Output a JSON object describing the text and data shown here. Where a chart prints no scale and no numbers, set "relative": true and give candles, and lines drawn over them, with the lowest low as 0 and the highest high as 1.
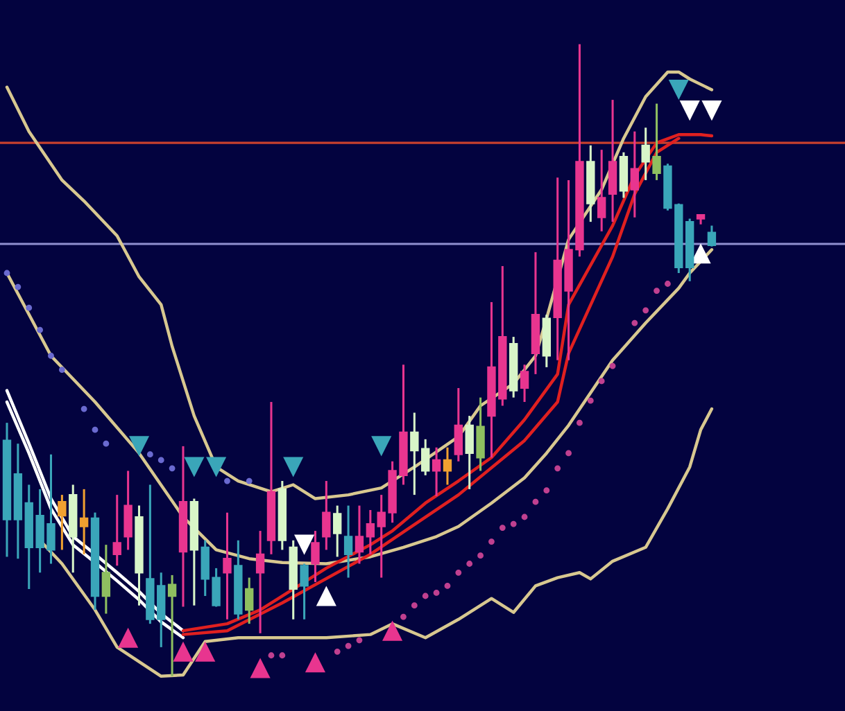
{
  "chart_data": {
    "type": "candlestick",
    "relative": true,
    "tick_labels": false,
    "categories": [
      null,
      null,
      null,
      null,
      null,
      null,
      null,
      null,
      null,
      null,
      null,
      null,
      null,
      null,
      null,
      null,
      null,
      null,
      null,
      null,
      null,
      null,
      null,
      null,
      null,
      null,
      null,
      null,
      null,
      null,
      null,
      null,
      null,
      null,
      null,
      null,
      null,
      null,
      null,
      null,
      null,
      null,
      null,
      null,
      null,
      null,
      null,
      null,
      null,
      null,
      null,
      null,
      null,
      null,
      null,
      null,
      null,
      null,
      null,
      null,
      null,
      null,
      null,
      null,
      null,
      null,
      null,
      null,
      null,
      null,
      null,
      null,
      null,
      null,
      null,
      null,
      null
    ],
    "ohlc": [
      [
        0.373,
        0.401,
        0.189,
        0.248
      ],
      [
        0.32,
        0.368,
        0.186,
        0.248
      ],
      [
        0.274,
        0.303,
        0.138,
        0.204
      ],
      [
        0.254,
        0.296,
        0.164,
        0.204
      ],
      [
        0.241,
        0.351,
        0.178,
        0.2
      ],
      [
        0.276,
        0.287,
        0.2,
        0.254
      ],
      [
        0.221,
        0.303,
        0.164,
        0.287
      ],
      [
        0.25,
        0.296,
        0.193,
        0.237
      ],
      [
        0.25,
        0.259,
        0.105,
        0.127
      ],
      [
        0.164,
        0.208,
        0.099,
        0.127
      ],
      [
        0.193,
        0.287,
        0.175,
        0.211
      ],
      [
        0.221,
        0.325,
        0.2,
        0.27
      ],
      [
        0.164,
        0.27,
        0.112,
        0.252
      ],
      [
        0.154,
        0.303,
        0.083,
        0.09
      ],
      [
        0.143,
        0.164,
        0.046,
        0.09
      ],
      [
        0.145,
        0.16,
        0,
        0.127
      ],
      [
        0.197,
        0.364,
        0.11,
        0.276
      ],
      [
        0.2,
        0.281,
        0.112,
        0.276
      ],
      [
        0.204,
        0.215,
        0.127,
        0.154
      ],
      [
        0.156,
        0.171,
        0.11,
        0.112
      ],
      [
        0.164,
        0.259,
        0.09,
        0.186
      ],
      [
        0.175,
        0.215,
        0.09,
        0.099
      ],
      [
        0.138,
        0.156,
        0.083,
        0.105
      ],
      [
        0.164,
        0.23,
        0.068,
        0.193
      ],
      [
        0.215,
        0.434,
        0.193,
        0.292
      ],
      [
        0.215,
        0.309,
        0.2,
        0.296
      ],
      [
        0.138,
        0.215,
        0.09,
        0.204
      ],
      [
        0.175,
        0.178,
        0.09,
        0.143
      ],
      [
        0.178,
        0.23,
        0.149,
        0.211
      ],
      [
        0.221,
        0.309,
        0.2,
        0.259
      ],
      [
        0.226,
        0.27,
        0.189,
        0.257
      ],
      [
        0.221,
        0.27,
        0.156,
        0.193
      ],
      [
        0.197,
        0.27,
        0.178,
        0.221
      ],
      [
        0.221,
        0.263,
        0.193,
        0.241
      ],
      [
        0.237,
        0.287,
        0.156,
        0.259
      ],
      [
        0.259,
        0.34,
        0.243,
        0.325
      ],
      [
        0.318,
        0.493,
        0.303,
        0.386
      ],
      [
        0.357,
        0.417,
        0.287,
        0.386
      ],
      [
        0.325,
        0.375,
        0.318,
        0.36
      ],
      [
        0.325,
        0.362,
        0.285,
        0.342
      ],
      [
        0.342,
        0.362,
        0.303,
        0.325
      ],
      [
        0.351,
        0.456,
        0.34,
        0.397
      ],
      [
        0.353,
        0.412,
        0.296,
        0.397
      ],
      [
        0.395,
        0.441,
        0.325,
        0.346
      ],
      [
        0.412,
        0.592,
        0.346,
        0.489
      ],
      [
        0.439,
        0.649,
        0.428,
        0.537
      ],
      [
        0.452,
        0.537,
        0.441,
        0.526
      ],
      [
        0.456,
        0.493,
        0.434,
        0.482
      ],
      [
        0.511,
        0.671,
        0.478,
        0.572
      ],
      [
        0.507,
        0.572,
        0.489,
        0.566
      ],
      [
        0.568,
        0.789,
        0.5,
        0.658
      ],
      [
        0.61,
        0.785,
        0.5,
        0.675
      ],
      [
        0.675,
        1,
        0.664,
        0.814
      ],
      [
        0.748,
        0.84,
        0.719,
        0.814
      ],
      [
        0.726,
        0.833,
        0.704,
        0.757
      ],
      [
        0.763,
        0.912,
        0.719,
        0.814
      ],
      [
        0.768,
        0.829,
        0.757,
        0.822
      ],
      [
        0.77,
        0.862,
        0.726,
        0.803
      ],
      [
        0.814,
        0.868,
        0.785,
        0.84
      ],
      [
        0.822,
        0.906,
        0.785,
        0.796
      ],
      [
        0.807,
        0.811,
        0.737,
        0.741
      ],
      [
        0.746,
        0.748,
        0.638,
        0.647
      ],
      [
        0.719,
        0.724,
        0.625,
        0.647
      ],
      [
        0.724,
        0.73,
        0.715,
        0.73
      ],
      [
        0.702,
        0.713,
        0.68,
        0.682
      ],
      null,
      null,
      null,
      null,
      null,
      null,
      null,
      null,
      null,
      null,
      null,
      null
    ],
    "colors": [
      "#3aa6b9",
      "#3aa6b9",
      "#3aa6b9",
      "#3aa6b9",
      "#3aa6b9",
      "#f0a030",
      "#d8f5c8",
      "#f0a030",
      "#3aa6b9",
      "#8fbf60",
      "#e8358f",
      "#e8358f",
      "#d8f5c8",
      "#3aa6b9",
      "#3aa6b9",
      "#8fbf60",
      "#e8358f",
      "#d8f5c8",
      "#3aa6b9",
      "#3aa6b9",
      "#e8358f",
      "#3aa6b9",
      "#8fbf60",
      "#e8358f",
      "#e8358f",
      "#d8f5c8",
      "#d8f5c8",
      "#3aa6b9",
      "#e8358f",
      "#e8358f",
      "#d8f5c8",
      "#3aa6b9",
      "#e8358f",
      "#e8358f",
      "#e8358f",
      "#e8358f",
      "#e8358f",
      "#d8f5c8",
      "#d8f5c8",
      "#e8358f",
      "#f0a030",
      "#e8358f",
      "#d8f5c8",
      "#8fbf60",
      "#e8358f",
      "#e8358f",
      "#d8f5c8",
      "#e8358f",
      "#e8358f",
      "#d8f5c8",
      "#e8358f",
      "#e8358f",
      "#e8358f",
      "#d8f5c8",
      "#e8358f",
      "#e8358f",
      "#d8f5c8",
      "#e8358f",
      "#d8f5c8",
      "#8fbf60",
      "#3aa6b9",
      "#3aa6b9",
      "#3aa6b9",
      "#e8358f",
      "#3aa6b9",
      null,
      null,
      null,
      null,
      null,
      null,
      null,
      null,
      null,
      null,
      null,
      null
    ],
    "ref_lines": [
      {
        "axis": "y",
        "value": 0.844,
        "color": "#c8402e"
      },
      {
        "axis": "y",
        "value": 0.684,
        "color": "#9090d0"
      }
    ],
    "series": [
      {
        "type": "line",
        "color": "#d8c890",
        "values": [
          0.932,
          null,
          0.862,
          null,
          null,
          0.785,
          null,
          0.752,
          null,
          null,
          0.697,
          null,
          0.632,
          null,
          0.588,
          0.522,
          null,
          0.412,
          null,
          0.331,
          null,
          0.309,
          null,
          null,
          0.292,
          null,
          0.303,
          null,
          0.281,
          null,
          null,
          0.287,
          null,
          null,
          0.298,
          null,
          null,
          0.331,
          null,
          null,
          null,
          0.379,
          null,
          0.428,
          null,
          null,
          0.463,
          null,
          0.507,
          0.566,
          null,
          0.691,
          null,
          null,
          0.77,
          null,
          0.851,
          null,
          0.917,
          null,
          0.956,
          0.956,
          0.945,
          null,
          0.928,
          null,
          null,
          null,
          null,
          null,
          null,
          null,
          null,
          null,
          null,
          null,
          null
        ]
      },
      {
        "type": "line",
        "color": "#d8c890",
        "values": [
          0.638,
          null,
          null,
          null,
          0.507,
          null,
          null,
          null,
          0.434,
          null,
          null,
          null,
          0.353,
          null,
          null,
          null,
          0.252,
          null,
          null,
          0.2,
          null,
          null,
          0.186,
          null,
          null,
          0.18,
          null,
          null,
          null,
          0.178,
          null,
          null,
          null,
          0.189,
          null,
          null,
          0.204,
          null,
          null,
          0.221,
          null,
          0.237,
          null,
          null,
          0.274,
          null,
          null,
          0.314,
          null,
          0.353,
          null,
          0.397,
          null,
          null,
          null,
          0.5,
          null,
          null,
          0.559,
          null,
          null,
          0.614,
          0.638,
          null,
          0.675,
          null,
          null,
          null,
          null,
          null,
          null,
          null,
          null,
          null,
          null,
          null,
          null
        ]
      },
      {
        "type": "line",
        "color": "#d8c890",
        "values": [
          null,
          null,
          null,
          0.215,
          null,
          0.178,
          null,
          null,
          0.105,
          null,
          0.046,
          null,
          null,
          null,
          0,
          null,
          0.002,
          null,
          0.055,
          null,
          null,
          0.061,
          null,
          null,
          null,
          0.061,
          null,
          null,
          null,
          0.061,
          null,
          null,
          null,
          0.066,
          null,
          0.083,
          null,
          null,
          0.061,
          null,
          null,
          0.09,
          null,
          null,
          0.123,
          null,
          0.101,
          null,
          0.143,
          null,
          0.156,
          null,
          0.164,
          0.154,
          null,
          0.182,
          null,
          null,
          0.204,
          null,
          0.265,
          null,
          0.331,
          0.39,
          0.423,
          null,
          null,
          null,
          null,
          null,
          null,
          null,
          null,
          null,
          null,
          null,
          null
        ]
      },
      {
        "type": "line",
        "color": "#ffffff",
        "values": [
          0.452,
          null,
          0.368,
          null,
          0.281,
          null,
          0.221,
          null,
          0.193,
          null,
          0.164,
          null,
          0.134,
          null,
          0.099,
          null,
          0.072,
          null,
          null,
          null,
          null,
          null,
          null,
          null,
          null,
          null,
          null,
          null,
          null,
          null,
          null,
          null,
          null,
          null,
          null,
          null,
          null,
          null,
          null,
          null,
          null,
          null,
          null,
          null,
          null,
          null,
          null,
          null,
          null,
          null,
          null,
          null,
          null,
          null,
          null,
          null,
          null,
          null,
          null,
          null,
          null,
          null,
          null,
          null,
          null,
          null,
          null,
          null,
          null,
          null,
          null,
          null,
          null,
          null,
          null,
          null,
          null
        ]
      },
      {
        "type": "line",
        "color": "#ffffff",
        "values": [
          0.434,
          null,
          0.353,
          null,
          0.265,
          null,
          0.208,
          null,
          0.18,
          null,
          0.151,
          null,
          0.121,
          null,
          0.086,
          null,
          0.061,
          null,
          null,
          null,
          null,
          null,
          null,
          null,
          null,
          null,
          null,
          null,
          null,
          null,
          null,
          null,
          null,
          null,
          null,
          null,
          null,
          null,
          null,
          null,
          null,
          null,
          null,
          null,
          null,
          null,
          null,
          null,
          null,
          null,
          null,
          null,
          null,
          null,
          null,
          null,
          null,
          null,
          null,
          null,
          null,
          null,
          null,
          null,
          null,
          null,
          null,
          null,
          null,
          null,
          null,
          null,
          null,
          null,
          null,
          null,
          null
        ]
      },
      {
        "type": "line",
        "color": "#e02020",
        "values": [
          null,
          null,
          null,
          null,
          null,
          null,
          null,
          null,
          null,
          null,
          null,
          null,
          null,
          null,
          null,
          null,
          0.072,
          null,
          null,
          null,
          0.083,
          null,
          null,
          0.105,
          null,
          0.127,
          null,
          null,
          null,
          0.171,
          null,
          null,
          null,
          0.208,
          null,
          0.23,
          null,
          null,
          0.274,
          null,
          null,
          0.309,
          null,
          null,
          0.346,
          null,
          null,
          0.406,
          null,
          null,
          0.478,
          0.588,
          null,
          null,
          null,
          0.713,
          null,
          0.792,
          null,
          0.844,
          null,
          0.857,
          null,
          0.857,
          0.855,
          null,
          null,
          null,
          null,
          null,
          null,
          null,
          null,
          null,
          null,
          null,
          null
        ]
      },
      {
        "type": "line",
        "color": "#e02020",
        "values": [
          null,
          null,
          null,
          null,
          null,
          null,
          null,
          null,
          null,
          null,
          null,
          null,
          null,
          null,
          null,
          null,
          0.066,
          null,
          null,
          null,
          0.072,
          null,
          null,
          null,
          null,
          0.116,
          null,
          null,
          null,
          null,
          null,
          null,
          null,
          0.193,
          null,
          null,
          null,
          null,
          null,
          null,
          null,
          0.287,
          null,
          null,
          null,
          null,
          null,
          0.373,
          null,
          null,
          0.434,
          0.511,
          null,
          null,
          null,
          0.664,
          null,
          0.763,
          null,
          0.829,
          null,
          0.851,
          null,
          null,
          null,
          null,
          null,
          null,
          null,
          null,
          null,
          null,
          null,
          null,
          null,
          null,
          null
        ]
      },
      {
        "type": "scatter",
        "color": "#6a6ad0",
        "marker": "circle",
        "values": [
          0.638,
          0.616,
          0.583,
          0.548,
          0.507,
          0.485,
          null,
          0.423,
          0.39,
          0.368,
          null,
          null,
          null,
          0.351,
          0.342,
          0.329,
          null,
          null,
          null,
          null,
          0.309,
          null,
          0.309,
          null,
          null,
          null,
          null,
          null,
          null,
          null,
          null,
          null,
          null,
          null,
          null,
          null,
          null,
          null,
          null,
          null,
          null,
          null,
          null,
          null,
          null,
          null,
          null,
          null,
          null,
          null,
          null,
          null,
          null,
          null,
          null,
          null,
          null,
          null,
          null,
          null,
          null,
          null,
          null,
          null,
          null,
          null,
          null,
          null,
          null,
          null,
          null,
          null,
          null,
          null,
          null,
          null,
          null
        ]
      },
      {
        "type": "scatter",
        "color": "#c04090",
        "marker": "circle",
        "values": [
          null,
          null,
          null,
          null,
          null,
          null,
          null,
          null,
          null,
          null,
          null,
          null,
          null,
          null,
          null,
          null,
          null,
          null,
          null,
          null,
          null,
          null,
          null,
          null,
          0.033,
          0.033,
          null,
          null,
          null,
          null,
          0.039,
          0.048,
          0.057,
          null,
          null,
          null,
          0.094,
          0.112,
          0.127,
          0.132,
          0.143,
          0.164,
          0.178,
          0.191,
          0.213,
          0.235,
          0.241,
          0.252,
          0.276,
          0.294,
          0.329,
          0.353,
          0.401,
          0.436,
          0.467,
          0.491,
          null,
          0.559,
          0.579,
          0.61,
          0.621,
          null,
          null,
          null,
          null,
          null,
          null,
          null,
          null,
          null,
          null,
          null,
          null,
          null,
          null,
          null,
          null
        ]
      },
      {
        "type": "scatter",
        "color": "#3aa6b9",
        "marker": "triangle_down",
        "values": [
          null,
          null,
          null,
          null,
          null,
          null,
          null,
          null,
          null,
          null,
          null,
          null,
          0.364,
          null,
          null,
          null,
          null,
          0.331,
          null,
          0.331,
          null,
          null,
          null,
          null,
          null,
          null,
          0.331,
          null,
          null,
          null,
          null,
          null,
          null,
          null,
          0.364,
          null,
          null,
          null,
          null,
          null,
          null,
          null,
          null,
          null,
          null,
          null,
          null,
          null,
          null,
          null,
          null,
          null,
          null,
          null,
          null,
          null,
          null,
          null,
          null,
          null,
          null,
          0.928,
          null,
          null,
          null,
          null,
          null,
          null,
          null,
          null,
          null,
          null,
          null,
          null,
          null,
          null,
          null
        ]
      },
      {
        "type": "scatter",
        "color": "#ffffff",
        "marker": "triangle_down",
        "values": [
          null,
          null,
          null,
          null,
          null,
          null,
          null,
          null,
          null,
          null,
          null,
          null,
          null,
          null,
          null,
          null,
          null,
          null,
          null,
          null,
          null,
          null,
          null,
          null,
          null,
          null,
          null,
          0.208,
          null,
          null,
          null,
          null,
          null,
          null,
          null,
          null,
          null,
          null,
          null,
          null,
          null,
          null,
          null,
          null,
          null,
          null,
          null,
          null,
          null,
          null,
          null,
          null,
          null,
          null,
          null,
          null,
          null,
          null,
          null,
          null,
          null,
          null,
          0.895,
          null,
          0.895,
          null,
          null,
          null,
          null,
          null,
          null,
          null,
          null,
          null,
          null,
          null,
          null
        ]
      },
      {
        "type": "scatter",
        "color": "#ffffff",
        "marker": "triangle",
        "values": [
          null,
          null,
          null,
          null,
          null,
          null,
          null,
          null,
          null,
          null,
          null,
          null,
          null,
          null,
          null,
          null,
          null,
          null,
          null,
          null,
          null,
          null,
          null,
          null,
          null,
          null,
          null,
          null,
          null,
          0.127,
          null,
          null,
          null,
          null,
          null,
          null,
          null,
          null,
          null,
          null,
          null,
          null,
          null,
          null,
          null,
          null,
          null,
          null,
          null,
          null,
          null,
          null,
          null,
          null,
          null,
          null,
          null,
          null,
          null,
          null,
          null,
          null,
          null,
          0.669,
          null,
          null,
          null,
          null,
          null,
          null,
          null,
          null,
          null,
          null,
          null,
          null,
          null
        ]
      },
      {
        "type": "scatter",
        "color": "#e8358f",
        "marker": "triangle",
        "values": [
          null,
          null,
          null,
          null,
          null,
          null,
          null,
          null,
          null,
          null,
          null,
          0.061,
          null,
          null,
          null,
          null,
          0.039,
          null,
          0.039,
          null,
          null,
          null,
          null,
          0.013,
          null,
          null,
          null,
          null,
          0.022,
          null,
          null,
          null,
          null,
          null,
          null,
          0.072,
          null,
          null,
          null,
          null,
          null,
          null,
          null,
          null,
          null,
          null,
          null,
          null,
          null,
          null,
          null,
          null,
          null,
          null,
          null,
          null,
          null,
          null,
          null,
          null,
          null,
          null,
          null,
          null,
          null,
          null,
          null,
          null,
          null,
          null,
          null,
          null,
          null,
          null,
          null,
          null,
          null
        ]
      }
    ]
  }
}
